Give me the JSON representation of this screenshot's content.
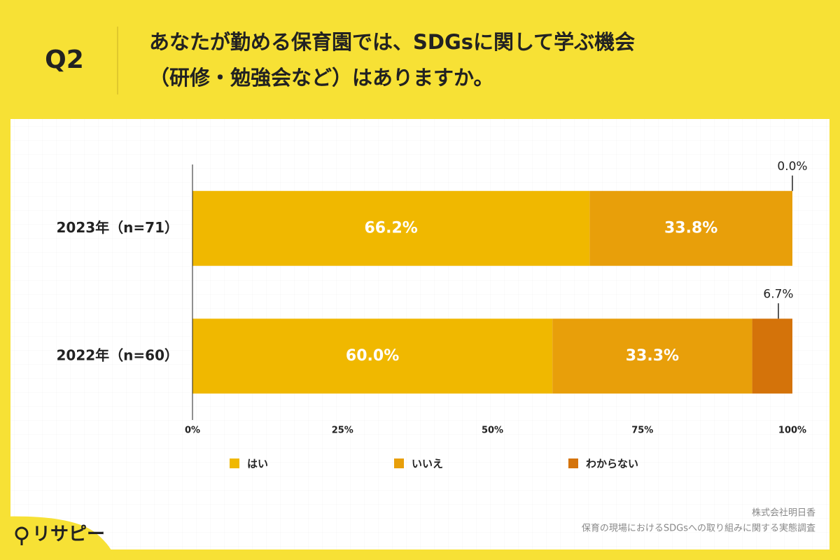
{
  "header": {
    "question": "Q2",
    "title": [
      "あなたが勤める保育園では、SDGsに関して学ぶ機会",
      "（研修・勉強会など）はありますか。"
    ]
  },
  "chart_data": {
    "type": "stacked_bar_horizontal",
    "categories": [
      "2023年（n=71）",
      "2022年（n=60）"
    ],
    "series": [
      {
        "name": "はい",
        "color": "#f0b800",
        "values": [
          66.2,
          60.0
        ],
        "value_labels": [
          "66.2%",
          "60.0%"
        ]
      },
      {
        "name": "いいえ",
        "color": "#e89f0a",
        "values": [
          33.8,
          33.3
        ],
        "value_labels": [
          "33.8%",
          "33.3%"
        ]
      },
      {
        "name": "わからない",
        "color": "#d4730a",
        "values": [
          0.0,
          6.7
        ],
        "value_labels": [
          "0.0%",
          "6.7%"
        ]
      }
    ],
    "xlim": [
      0,
      100
    ],
    "xticks": [
      {
        "value": 0,
        "label": "0%"
      },
      {
        "value": 25,
        "label": "25%"
      },
      {
        "value": 50,
        "label": "50%"
      },
      {
        "value": 75,
        "label": "75%"
      },
      {
        "value": 100,
        "label": "100%"
      }
    ],
    "legend": "bottom"
  },
  "footer": {
    "source": [
      "株式会社明日香",
      "保育の現場におけるSDGsへの取り組みに関する実態調査"
    ],
    "logo": "リサピー"
  }
}
